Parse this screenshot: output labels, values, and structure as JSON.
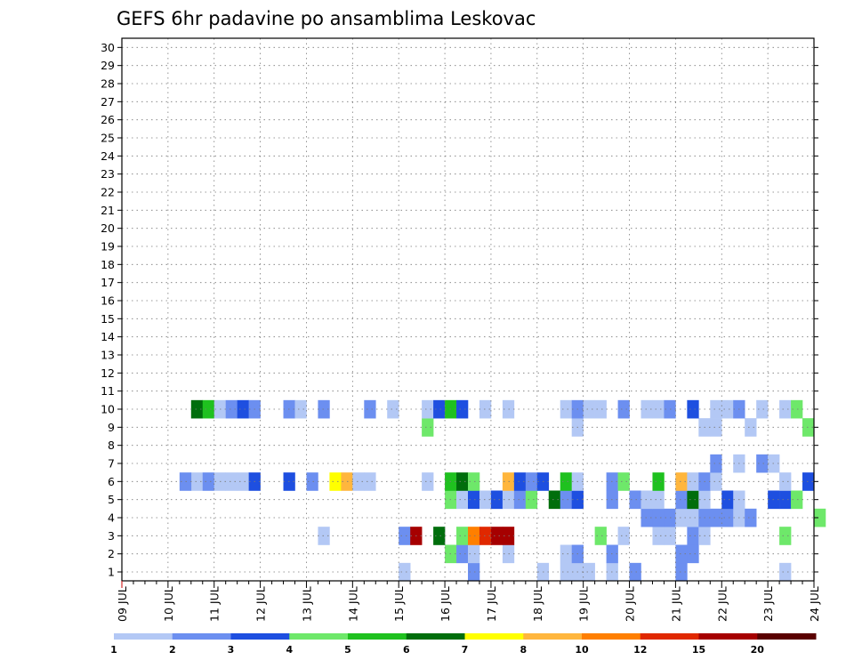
{
  "chart_data": {
    "type": "heatmap",
    "title": "GEFS 6hr padavine po ansamblima Leskovac",
    "xlabel": "",
    "ylabel": "",
    "x_ticks": [
      "09 JUL",
      "10 JUL",
      "11 JUL",
      "12 JUL",
      "13 JUL",
      "14 JUL",
      "15 JUL",
      "16 JUL",
      "17 JUL",
      "18 JUL",
      "19 JUL",
      "20 JUL",
      "21 JUL",
      "22 JUL",
      "23 JUL",
      "24 JUL"
    ],
    "x_minor_ticks_per_day": 4,
    "members": [
      1,
      2,
      3,
      4,
      5,
      6,
      7,
      8,
      9,
      10,
      11,
      12,
      13,
      14,
      15,
      16,
      17,
      18,
      19,
      20,
      21,
      22,
      23,
      24,
      25,
      26,
      27,
      28,
      29,
      30
    ],
    "grid": true,
    "colorbar": {
      "levels": [
        "1",
        "2",
        "3",
        "4",
        "5",
        "6",
        "7",
        "8",
        "10",
        "12",
        "15",
        "20"
      ],
      "colors": [
        "#b3c8f5",
        "#6c8ff0",
        "#1e4fe0",
        "#6ee86a",
        "#1fc11f",
        "#006e0c",
        "#ffff00",
        "#ffb63d",
        "#ff7f00",
        "#e02800",
        "#a60000",
        "#5a0000"
      ]
    },
    "cells": [
      [
        1,
        6,
        1,
        0.5
      ],
      [
        1,
        7.5,
        2,
        0.5
      ],
      [
        1,
        9,
        1,
        0.5
      ],
      [
        1,
        9.5,
        1,
        0.5
      ],
      [
        1,
        9.75,
        1,
        0.5
      ],
      [
        1,
        10,
        1,
        0.5
      ],
      [
        1,
        10.5,
        1,
        0.5
      ],
      [
        1,
        11,
        2,
        0.5
      ],
      [
        1,
        12,
        2,
        0.5
      ],
      [
        1,
        14.25,
        1,
        0.5
      ],
      [
        2,
        7,
        4,
        1
      ],
      [
        2,
        7.25,
        2,
        1
      ],
      [
        2,
        7.5,
        1,
        1
      ],
      [
        2,
        8.25,
        1,
        1
      ],
      [
        2,
        9.5,
        1,
        1
      ],
      [
        2,
        9.75,
        2,
        1
      ],
      [
        2,
        10.5,
        2,
        1
      ],
      [
        2,
        12,
        2,
        1
      ],
      [
        2,
        12.25,
        2,
        1
      ],
      [
        3,
        4.25,
        1,
        2
      ],
      [
        3,
        6,
        2,
        2
      ],
      [
        3,
        6.25,
        11,
        2
      ],
      [
        3,
        6.75,
        6,
        3
      ],
      [
        3,
        7.25,
        4,
        3
      ],
      [
        3,
        7.5,
        9,
        3
      ],
      [
        3,
        7.75,
        10,
        3
      ],
      [
        3,
        8,
        11,
        3
      ],
      [
        3,
        8.25,
        11,
        3
      ],
      [
        3,
        10.25,
        4,
        4
      ],
      [
        3,
        10.75,
        1,
        4
      ],
      [
        3,
        11.5,
        1,
        4
      ],
      [
        3,
        11.75,
        1,
        4
      ],
      [
        3,
        12.25,
        2,
        4
      ],
      [
        3,
        12.5,
        1,
        4
      ],
      [
        3,
        14.25,
        4,
        4
      ],
      [
        4,
        11.25,
        2,
        5
      ],
      [
        4,
        11.5,
        2,
        5
      ],
      [
        4,
        11.75,
        2,
        5
      ],
      [
        4,
        12,
        1,
        5
      ],
      [
        4,
        12.25,
        1,
        5
      ],
      [
        4,
        12.5,
        2,
        5
      ],
      [
        4,
        12.75,
        2,
        5
      ],
      [
        4,
        13,
        2,
        5
      ],
      [
        4,
        13.25,
        1,
        5
      ],
      [
        4,
        13.5,
        2,
        5
      ],
      [
        4,
        15,
        4,
        5
      ],
      [
        5,
        7,
        4,
        6
      ],
      [
        5,
        7.25,
        1,
        6
      ],
      [
        5,
        7.5,
        3,
        6
      ],
      [
        5,
        7.75,
        1,
        6
      ],
      [
        5,
        8,
        3,
        6
      ],
      [
        5,
        8.25,
        1,
        6
      ],
      [
        5,
        8.5,
        2,
        6
      ],
      [
        5,
        8.75,
        4,
        6
      ],
      [
        5,
        9.25,
        6,
        6
      ],
      [
        5,
        9.5,
        2,
        6
      ],
      [
        5,
        9.75,
        3,
        6
      ],
      [
        5,
        10.5,
        2,
        6
      ],
      [
        5,
        11,
        2,
        6
      ],
      [
        5,
        11.25,
        1,
        6
      ],
      [
        5,
        11.5,
        1,
        6
      ],
      [
        5,
        12,
        2,
        6
      ],
      [
        5,
        12.25,
        6,
        6
      ],
      [
        5,
        12.5,
        1,
        6
      ],
      [
        5,
        13,
        3,
        6
      ],
      [
        5,
        13.25,
        1,
        6
      ],
      [
        5,
        14,
        3,
        6
      ],
      [
        5,
        14.25,
        3,
        6
      ],
      [
        5,
        14.5,
        4,
        6
      ],
      [
        5,
        15.75,
        3,
        6
      ],
      [
        5,
        16.25,
        5,
        6
      ],
      [
        6,
        1.5,
        1,
        7
      ],
      [
        6,
        1.75,
        2,
        7
      ],
      [
        6,
        1.25,
        2,
        7
      ],
      [
        6,
        2,
        1,
        7
      ],
      [
        6,
        2.25,
        1,
        7
      ],
      [
        6,
        2.5,
        1,
        7
      ],
      [
        6,
        2.75,
        3,
        7
      ],
      [
        6,
        3.5,
        3,
        7
      ],
      [
        6,
        4,
        2,
        7
      ],
      [
        6,
        4.5,
        7,
        7
      ],
      [
        6,
        4.75,
        8,
        7
      ],
      [
        6,
        5,
        1,
        7
      ],
      [
        6,
        5.25,
        1,
        7
      ],
      [
        6,
        6.5,
        1,
        7
      ],
      [
        6,
        7,
        5,
        7
      ],
      [
        6,
        7.25,
        6,
        7
      ],
      [
        6,
        7.5,
        4,
        7
      ],
      [
        6,
        8.25,
        8,
        7
      ],
      [
        6,
        8.5,
        3,
        7
      ],
      [
        6,
        8.75,
        2,
        7
      ],
      [
        6,
        9,
        3,
        7
      ],
      [
        6,
        9.5,
        5,
        7
      ],
      [
        6,
        9.75,
        1,
        7
      ],
      [
        6,
        10.5,
        2,
        7
      ],
      [
        6,
        10.75,
        4,
        7
      ],
      [
        6,
        11.5,
        5,
        7
      ],
      [
        6,
        12,
        8,
        7
      ],
      [
        6,
        12.25,
        1,
        7
      ],
      [
        6,
        12.5,
        2,
        7
      ],
      [
        6,
        12.75,
        1,
        7
      ],
      [
        6,
        14.25,
        1,
        7
      ],
      [
        6,
        14.75,
        3,
        7
      ],
      [
        6,
        15.25,
        5,
        7
      ],
      [
        7,
        12.75,
        2,
        8
      ],
      [
        7,
        13.25,
        1,
        8
      ],
      [
        7,
        13.75,
        2,
        8
      ],
      [
        7,
        14,
        1,
        8
      ],
      [
        8,
        15.25,
        4,
        9
      ],
      [
        8,
        15.5,
        3,
        9
      ],
      [
        8,
        16,
        3,
        9
      ],
      [
        8,
        16.25,
        1,
        9
      ],
      [
        8,
        16.5,
        6,
        9
      ],
      [
        8,
        17,
        2,
        9
      ],
      [
        8,
        17.25,
        3,
        9
      ],
      [
        8,
        18,
        1,
        9
      ],
      [
        8,
        18.25,
        1,
        9
      ],
      [
        8,
        18.5,
        2,
        9
      ],
      [
        8,
        18.75,
        6,
        9
      ],
      [
        8,
        19.25,
        7,
        9
      ],
      [
        9,
        6.5,
        4,
        10
      ],
      [
        9,
        9.75,
        1,
        10
      ],
      [
        9,
        12.5,
        1,
        10
      ],
      [
        9,
        12.75,
        1,
        10
      ],
      [
        9,
        13.5,
        1,
        10
      ],
      [
        9,
        14.75,
        4,
        10
      ],
      [
        9,
        15.25,
        1,
        10
      ],
      [
        9,
        15.5,
        1,
        10
      ],
      [
        10,
        1.5,
        6,
        11
      ],
      [
        10,
        1.75,
        5,
        11
      ],
      [
        10,
        2,
        1,
        11
      ],
      [
        10,
        2.25,
        2,
        11
      ],
      [
        10,
        2.5,
        3,
        11
      ],
      [
        10,
        2.75,
        2,
        11
      ],
      [
        10,
        3.5,
        2,
        11
      ],
      [
        10,
        3.75,
        1,
        11
      ],
      [
        10,
        4.25,
        2,
        11
      ],
      [
        10,
        5.25,
        2,
        11
      ],
      [
        10,
        5.75,
        1,
        11
      ],
      [
        10,
        6.5,
        1,
        11
      ],
      [
        10,
        6.75,
        3,
        11
      ],
      [
        10,
        7,
        5,
        11
      ],
      [
        10,
        7.25,
        3,
        11
      ],
      [
        10,
        7.75,
        1,
        11
      ],
      [
        10,
        8.25,
        1,
        11
      ],
      [
        10,
        9.5,
        1,
        11
      ],
      [
        10,
        9.75,
        2,
        11
      ],
      [
        10,
        10,
        1,
        11
      ],
      [
        10,
        10.25,
        1,
        11
      ],
      [
        10,
        10.75,
        2,
        11
      ],
      [
        10,
        11.25,
        1,
        11
      ],
      [
        10,
        11.5,
        1,
        11
      ],
      [
        10,
        11.75,
        2,
        11
      ],
      [
        10,
        12.25,
        3,
        11
      ],
      [
        10,
        12.75,
        1,
        11
      ],
      [
        10,
        13,
        1,
        11
      ],
      [
        10,
        13.25,
        2,
        11
      ],
      [
        10,
        13.75,
        1,
        11
      ],
      [
        10,
        14.25,
        1,
        11
      ],
      [
        10,
        14.5,
        4,
        11
      ],
      [
        10,
        15.25,
        12,
        11
      ],
      [
        10,
        15.5,
        12,
        11
      ],
      [
        10,
        15.75,
        2,
        11
      ],
      [
        10,
        16,
        4,
        11
      ],
      [
        10,
        16.5,
        1,
        11
      ],
      [
        10,
        16.75,
        3,
        11
      ],
      [
        10,
        17,
        1,
        11
      ],
      [
        10,
        17.25,
        1,
        11
      ],
      [
        10,
        17.5,
        2,
        11
      ],
      [
        10,
        17.75,
        2,
        11
      ],
      [
        10,
        18,
        3,
        11
      ],
      [
        10,
        18.25,
        5,
        11
      ],
      [
        10,
        18.75,
        1,
        11
      ],
      [
        10,
        19,
        2,
        11
      ],
      [
        10,
        19.25,
        2,
        11
      ],
      [
        10,
        19.5,
        1,
        11
      ],
      [
        10,
        19.75,
        1,
        11
      ],
      [
        10,
        20,
        1,
        11
      ],
      [
        10,
        20.25,
        4,
        11
      ],
      [
        10,
        20.5,
        1,
        11
      ],
      [
        10,
        21,
        2,
        11
      ],
      [
        10,
        21.25,
        1,
        11
      ],
      [
        10,
        21.5,
        2,
        11
      ],
      [
        10,
        21.75,
        1,
        11
      ],
      [
        10,
        22,
        2,
        11
      ],
      [
        10,
        22.25,
        1,
        11
      ],
      [
        10,
        22.5,
        1,
        11
      ],
      [
        10,
        22.75,
        2,
        11
      ],
      [
        10,
        23,
        1,
        11
      ],
      [
        10,
        23.25,
        2,
        11
      ],
      [
        10,
        23.5,
        3,
        11
      ],
      [
        10,
        23.75,
        1,
        11
      ],
      [
        10,
        24,
        2,
        11
      ],
      [
        10,
        24.25,
        1,
        11
      ],
      [
        10,
        24.5,
        1,
        11
      ],
      [
        10,
        24.75,
        4,
        11
      ],
      [
        10,
        25,
        1,
        11
      ],
      [
        10,
        25.25,
        1,
        11
      ],
      [
        10,
        25.5,
        3,
        11
      ],
      [
        10,
        25.75,
        1,
        11
      ],
      [
        10,
        26,
        2,
        11
      ],
      [
        10,
        26.25,
        2,
        11
      ],
      [
        10,
        26.5,
        2,
        11
      ],
      [
        10,
        26.75,
        1,
        11
      ],
      [
        10,
        27,
        2,
        11
      ],
      [
        10,
        27.25,
        1,
        11
      ],
      [
        10,
        27.5,
        1,
        11
      ],
      [
        10,
        27.75,
        3,
        11
      ],
      [
        10,
        28,
        3,
        11
      ],
      [
        10,
        28.25,
        2,
        11
      ],
      [
        10,
        28.5,
        1,
        11
      ],
      [
        10,
        28.75,
        1,
        11
      ],
      [
        10,
        29,
        1,
        11
      ],
      [
        10,
        29.25,
        2,
        11
      ],
      [
        10,
        29.5,
        2,
        11
      ],
      [
        10,
        29.75,
        2,
        11
      ]
    ]
  }
}
